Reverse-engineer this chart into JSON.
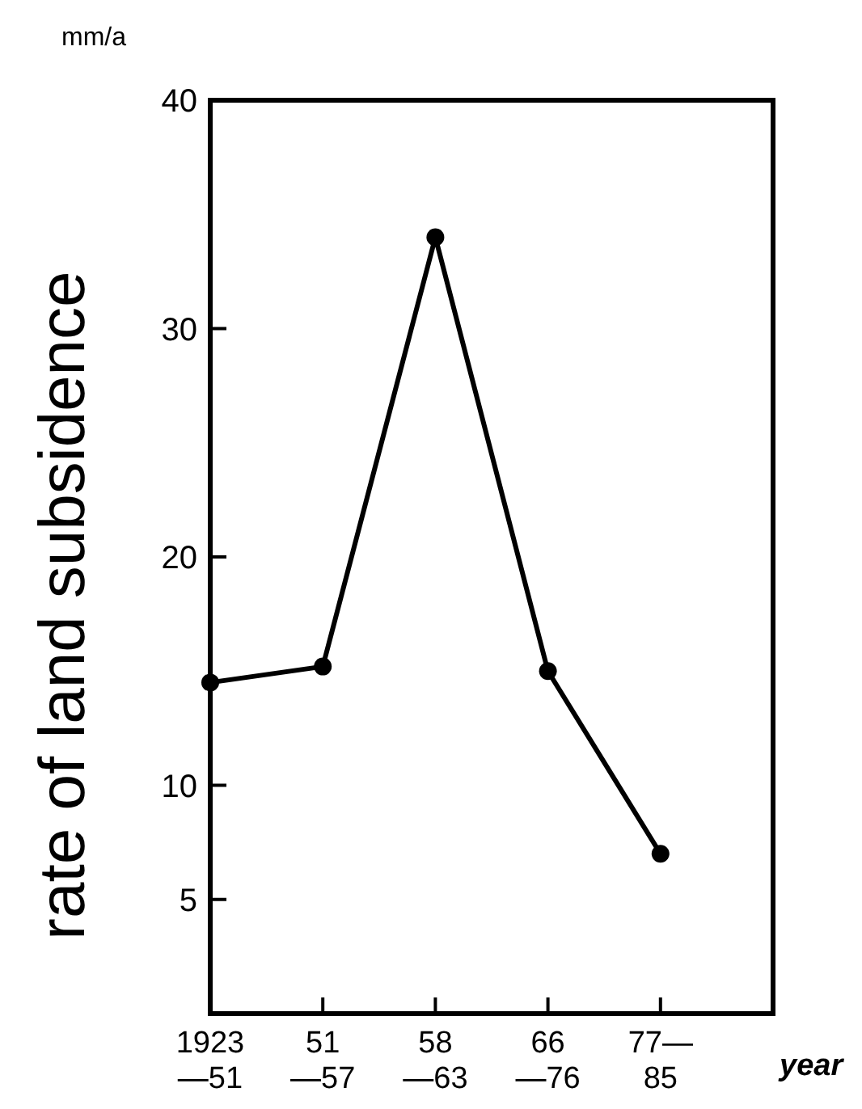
{
  "chart_data": {
    "type": "line",
    "ylabel": "rate of land subsidence",
    "xlabel": "year",
    "annotations": [
      "mm/a"
    ],
    "categories": [
      "1923\n—51",
      "51\n—57",
      "58\n—63",
      "66\n—76",
      "77—\n85"
    ],
    "values": [
      14.5,
      15.2,
      34.0,
      15.0,
      7.0
    ],
    "color": "#000000",
    "marker": "circle",
    "line_style": "solid",
    "ylim": [
      0,
      40
    ],
    "yticks": [
      5,
      10,
      20,
      30,
      40
    ]
  }
}
